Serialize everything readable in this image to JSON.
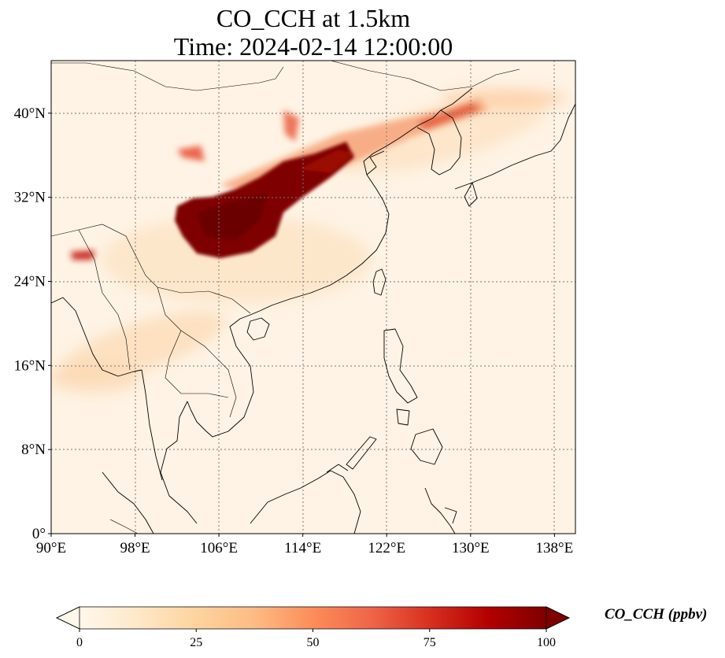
{
  "title": {
    "line1": "CO_CCH at 1.5km",
    "line2": "Time: 2024-02-14 12:00:00"
  },
  "map": {
    "lon_range": [
      90,
      140
    ],
    "lat_range": [
      0,
      45
    ],
    "lon_ticks": [
      {
        "value": 90,
        "label": "90°E"
      },
      {
        "value": 98,
        "label": "98°E"
      },
      {
        "value": 106,
        "label": "106°E"
      },
      {
        "value": 114,
        "label": "114°E"
      },
      {
        "value": 122,
        "label": "122°E"
      },
      {
        "value": 130,
        "label": "130°E"
      },
      {
        "value": 138,
        "label": "138°E"
      }
    ],
    "lat_ticks": [
      {
        "value": 0,
        "label": "0°"
      },
      {
        "value": 8,
        "label": "8°N"
      },
      {
        "value": 16,
        "label": "16°N"
      },
      {
        "value": 24,
        "label": "24°N"
      },
      {
        "value": 32,
        "label": "32°N"
      },
      {
        "value": 40,
        "label": "40°N"
      }
    ],
    "gridlines": true,
    "colormap": "OrRd",
    "colormap_stops": [
      "#fff7ec",
      "#fee8c8",
      "#fdd49e",
      "#fdbb84",
      "#fc8d59",
      "#ef6548",
      "#d7301f",
      "#b30000",
      "#7f0000"
    ],
    "background_color": "#fef3e4"
  },
  "colorbar": {
    "min": 0,
    "max": 100,
    "ticks": [
      {
        "value": 0,
        "label": "0"
      },
      {
        "value": 25,
        "label": "25"
      },
      {
        "value": 50,
        "label": "50"
      },
      {
        "value": 75,
        "label": "75"
      },
      {
        "value": 100,
        "label": "100"
      }
    ],
    "extend": "both",
    "label": "CO_CCH (ppbv)"
  }
}
